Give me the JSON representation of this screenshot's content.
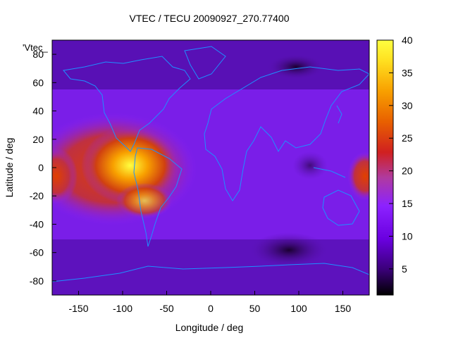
{
  "title": "VTEC / TECU 20090927_270.77400",
  "legend_key": "'Vtec_",
  "map": {
    "xlabel": "Longitude / deg",
    "ylabel": "Latitude / deg",
    "xlim": [
      -180,
      180
    ],
    "ylim": [
      -90,
      90
    ],
    "xticks": [
      "-150",
      "-100",
      "-50",
      "0",
      "50",
      "100",
      "150"
    ],
    "yticks": [
      "80",
      "60",
      "40",
      "20",
      "0",
      "-20",
      "-40",
      "-60",
      "-80"
    ],
    "colorbar": {
      "range": [
        1,
        40
      ],
      "ticks": [
        "40",
        "35",
        "30",
        "25",
        "20",
        "15",
        "10",
        "5"
      ],
      "palette": [
        "#000000",
        "#3a0078",
        "#6a00e0",
        "#8c22ff",
        "#b03aa0",
        "#d02020",
        "#e86000",
        "#f8a000",
        "#ffe020",
        "#ffff40"
      ]
    },
    "coastline_color": "#1e90ff"
  }
}
